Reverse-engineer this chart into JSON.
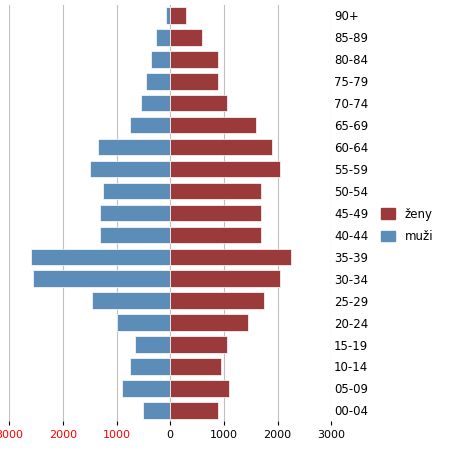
{
  "age_groups": [
    "00-04",
    "05-09",
    "10-14",
    "15-19",
    "20-24",
    "25-29",
    "30-34",
    "35-39",
    "40-44",
    "45-49",
    "50-54",
    "55-59",
    "60-64",
    "65-69",
    "70-74",
    "75-79",
    "80-84",
    "85-89",
    "90+"
  ],
  "muzi": [
    500,
    900,
    750,
    650,
    1000,
    1450,
    2550,
    2600,
    1300,
    1300,
    1250,
    1500,
    1350,
    750,
    550,
    450,
    350,
    270,
    80
  ],
  "zeny": [
    900,
    1100,
    950,
    1050,
    1450,
    1750,
    2050,
    2250,
    1700,
    1700,
    1700,
    2050,
    1900,
    1600,
    1050,
    900,
    900,
    600,
    300
  ],
  "zeny_color": "#9B3A3A",
  "muzi_color": "#5B8DB8",
  "xlim": 3000,
  "legend_muzi": "muži",
  "legend_zeny": "ženy",
  "tick_color_left": "#FF0000",
  "tick_color_right": "#000000",
  "gridline_color": "#C0C0C0",
  "bar_height": 0.75
}
